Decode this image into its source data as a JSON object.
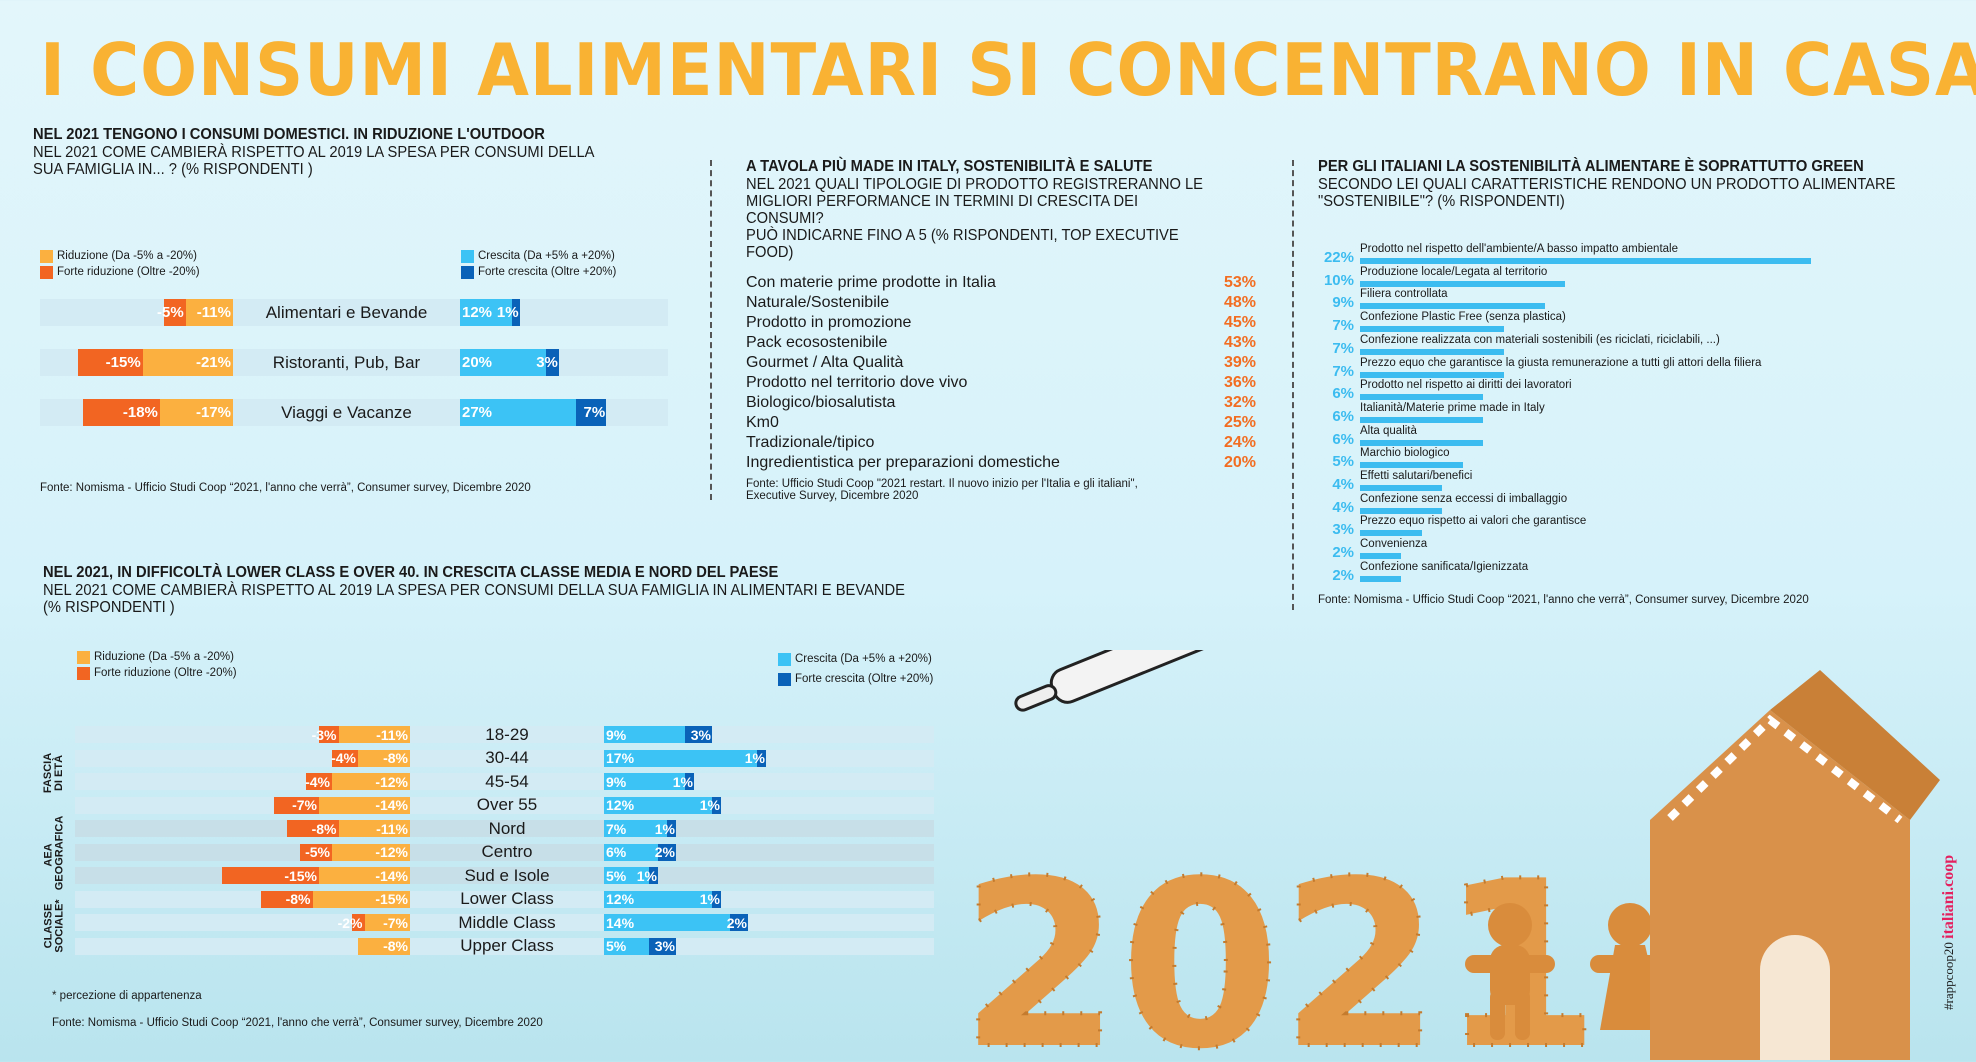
{
  "title": "I CONSUMI ALIMENTARI SI CONCENTRANO IN CASA.",
  "colors": {
    "title": "#f9b233",
    "riduzione": "#fbb040",
    "forte_riduzione": "#f26522",
    "crescita": "#3cc3f5",
    "forte_crescita": "#0a62b8",
    "value_orange": "#f26d21",
    "brand": "#e4205f"
  },
  "footer": {
    "hashtag": "#rappcoop20",
    "brand": "italiani.coop"
  },
  "chart_data": [
    {
      "type": "bar",
      "title": "NEL 2021 TENGONO I CONSUMI DOMESTICI. IN RIDUZIONE L'OUTDOOR",
      "subtitle": "NEL 2021 COME CAMBIERÀ RISPETTO AL 2019 LA SPESA PER CONSUMI DELLA\nSUA FAMIGLIA IN... ? (% RISPONDENTI )",
      "legend": [
        "Riduzione (Da -5% a -20%)",
        "Forte riduzione (Oltre -20%)",
        "Crescita (Da +5% a +20%)",
        "Forte crescita (Oltre +20%)"
      ],
      "categories": [
        "Alimentari e Bevande",
        "Ristoranti, Pub, Bar",
        "Viaggi e Vacanze"
      ],
      "series": [
        {
          "name": "Forte riduzione (Oltre -20%)",
          "values": [
            -5,
            -15,
            -18
          ],
          "labels": [
            "-5%",
            "-15%",
            "-18%"
          ]
        },
        {
          "name": "Riduzione (Da -5% a -20%)",
          "values": [
            -11,
            -21,
            -17
          ],
          "labels": [
            "-11%",
            "-21%",
            "-17%"
          ]
        },
        {
          "name": "Crescita (Da +5% a +20%)",
          "values": [
            12,
            20,
            27
          ],
          "labels": [
            "12%",
            "20%",
            "27%"
          ]
        },
        {
          "name": "Forte crescita (Oltre +20%)",
          "values": [
            1,
            3,
            7
          ],
          "labels": [
            "1%",
            "3%",
            "7%"
          ]
        }
      ],
      "source": "Fonte: Nomisma - Ufficio Studi Coop “2021, l'anno che verrà”, Consumer survey, Dicembre 2020"
    },
    {
      "type": "table",
      "title": "A TAVOLA PIÙ MADE IN ITALY, SOSTENIBILITÀ E SALUTE",
      "subtitle": "NEL 2021 QUALI TIPOLOGIE DI PRODOTTO REGISTRERANNO LE\nMIGLIORI PERFORMANCE IN TERMINI DI CRESCITA DEI CONSUMI?\nPUÒ INDICARNE FINO A 5 (% RISPONDENTI, TOP EXECUTIVE FOOD)",
      "rows": [
        {
          "label": "Con materie prime prodotte in Italia",
          "value": "53%"
        },
        {
          "label": "Naturale/Sostenibile",
          "value": "48%"
        },
        {
          "label": "Prodotto in promozione",
          "value": "45%"
        },
        {
          "label": "Pack ecosostenibile",
          "value": "43%"
        },
        {
          "label": "Gourmet / Alta Qualità",
          "value": "39%"
        },
        {
          "label": "Prodotto nel territorio dove vivo",
          "value": "36%"
        },
        {
          "label": "Biologico/biosalutista",
          "value": "32%"
        },
        {
          "label": "Km0",
          "value": "25%"
        },
        {
          "label": "Tradizionale/tipico",
          "value": "24%"
        },
        {
          "label": "Ingredientistica per preparazioni domestiche",
          "value": "20%"
        }
      ],
      "source": "Fonte: Ufficio Studi Coop \"2021 restart. Il nuovo inizio per l'Italia e gli italiani\",\n            Executive Survey, Dicembre 2020"
    },
    {
      "type": "bar",
      "title": "PER GLI ITALIANI LA SOSTENIBILITÀ ALIMENTARE È SOPRATTUTTO GREEN",
      "subtitle": "SECONDO LEI QUALI CARATTERISTICHE RENDONO UN PRODOTTO ALIMENTARE\n\"SOSTENIBILE\"? (% RISPONDENTI)",
      "categories": [
        "Prodotto nel rispetto dell'ambiente/A basso impatto ambientale",
        "Produzione locale/Legata al territorio",
        "Filiera controllata",
        "Confezione Plastic Free (senza plastica)",
        "Confezione realizzata con materiali sostenibili (es riciclati, riciclabili, ...)",
        "Prezzo equo che garantisce la giusta remunerazione a tutti gli attori della filiera",
        "Prodotto nel rispetto ai diritti dei lavoratori",
        "Italianità/Materie prime made in Italy",
        "Alta qualità",
        "Marchio biologico",
        "Effetti salutari/benefici",
        "Confezione senza eccessi di imballaggio",
        "Prezzo equo rispetto ai valori che garantisce",
        "Convenienza",
        "Confezione sanificata/Igienizzata"
      ],
      "values": [
        22,
        10,
        9,
        7,
        7,
        7,
        6,
        6,
        6,
        5,
        4,
        4,
        3,
        2,
        2
      ],
      "labels": [
        "22%",
        "10%",
        "9%",
        "7%",
        "7%",
        "7%",
        "6%",
        "6%",
        "6%",
        "5%",
        "4%",
        "4%",
        "3%",
        "2%",
        "2%"
      ],
      "source": "Fonte: Nomisma - Ufficio Studi Coop “2021, l'anno che verrà”, Consumer survey, Dicembre 2020"
    },
    {
      "type": "bar",
      "title": "NEL 2021, IN DIFFICOLTÀ  LOWER CLASS E OVER 40. IN CRESCITA  CLASSE MEDIA E  NORD DEL PAESE",
      "subtitle": "NEL 2021 COME CAMBIERÀ RISPETTO AL 2019 LA SPESA PER CONSUMI DELLA SUA FAMIGLIA IN ALIMENTARI E BEVANDE\n(% RISPONDENTI )",
      "legend": [
        "Riduzione (Da -5% a -20%)",
        "Forte riduzione (Oltre -20%)",
        "Crescita (Da +5% a +20%)",
        "Forte crescita (Oltre +20%)"
      ],
      "groups": [
        {
          "label": "FASCIA\nDI ETÀ",
          "rows": 4
        },
        {
          "label": "AEA\nGEOGRAFICA",
          "rows": 3
        },
        {
          "label": "CLASSE\nSOCIALE*",
          "rows": 3
        }
      ],
      "categories": [
        "18-29",
        "30-44",
        "45-54",
        "Over 55",
        "Nord",
        "Centro",
        "Sud e Isole",
        "Lower Class",
        "Middle Class",
        "Upper Class"
      ],
      "series": [
        {
          "name": "Forte riduzione (Oltre -20%)",
          "values": [
            -3,
            -4,
            -4,
            -7,
            -8,
            -5,
            -15,
            -8,
            -2,
            0
          ],
          "labels": [
            "-3%",
            "-4%",
            "-4%",
            "-7%",
            "-8%",
            "-5%",
            "-15%",
            "-8%",
            "-2%",
            ""
          ]
        },
        {
          "name": "Riduzione (Da -5% a -20%)",
          "values": [
            -11,
            -8,
            -12,
            -14,
            -11,
            -12,
            -14,
            -15,
            -7,
            -8
          ],
          "labels": [
            "-11%",
            "-8%",
            "-12%",
            "-14%",
            "-11%",
            "-12%",
            "-14%",
            "-15%",
            "-7%",
            "-8%"
          ]
        },
        {
          "name": "Crescita (Da +5% a +20%)",
          "values": [
            9,
            17,
            9,
            12,
            7,
            6,
            5,
            12,
            14,
            5
          ],
          "labels": [
            "9%",
            "17%",
            "9%",
            "12%",
            "7%",
            "6%",
            "5%",
            "12%",
            "14%",
            "5%"
          ]
        },
        {
          "name": "Forte crescita (Oltre +20%)",
          "values": [
            3,
            1,
            1,
            1,
            1,
            2,
            1,
            1,
            2,
            3
          ],
          "labels": [
            "3%",
            "1%",
            "1%",
            "1%",
            "1%",
            "2%",
            "1%",
            "1%",
            "2%",
            "3%"
          ]
        }
      ],
      "note": "* percezione di appartenenza",
      "source": "Fonte: Nomisma - Ufficio Studi Coop “2021, l'anno che verrà”, Consumer survey, Dicembre 2020"
    }
  ]
}
